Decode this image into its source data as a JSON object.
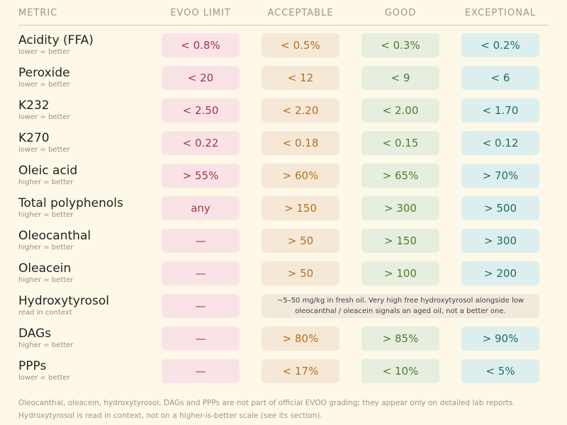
{
  "header": {
    "metric": "METRIC",
    "limit": "EVOO LIMIT",
    "acceptable": "ACCEPTABLE",
    "good": "GOOD",
    "exceptional": "EXCEPTIONAL"
  },
  "rows": [
    {
      "name": "Acidity (FFA)",
      "hint": "lower = better",
      "limit": "< 0.8%",
      "acceptable": "< 0.5%",
      "good": "< 0.3%",
      "exceptional": "< 0.2%"
    },
    {
      "name": "Peroxide",
      "hint": "lower = better",
      "limit": "< 20",
      "acceptable": "< 12",
      "good": "< 9",
      "exceptional": "< 6"
    },
    {
      "name": "K232",
      "hint": "lower = better",
      "limit": "< 2.50",
      "acceptable": "< 2.20",
      "good": "< 2.00",
      "exceptional": "< 1.70"
    },
    {
      "name": "K270",
      "hint": "lower = better",
      "limit": "< 0.22",
      "acceptable": "< 0.18",
      "good": "< 0.15",
      "exceptional": "< 0.12"
    },
    {
      "name": "Oleic acid",
      "hint": "higher = better",
      "limit": "> 55%",
      "acceptable": "> 60%",
      "good": "> 65%",
      "exceptional": "> 70%"
    },
    {
      "name": "Total polyphenols",
      "hint": "higher = better",
      "limit": "any",
      "acceptable": "> 150",
      "good": "> 300",
      "exceptional": "> 500"
    },
    {
      "name": "Oleocanthal",
      "hint": "higher = better",
      "limit": "—",
      "acceptable": "> 50",
      "good": "> 150",
      "exceptional": "> 300"
    },
    {
      "name": "Oleacein",
      "hint": "higher = better",
      "limit": "—",
      "acceptable": "> 50",
      "good": "> 100",
      "exceptional": "> 200"
    },
    {
      "name": "Hydroxytyrosol",
      "hint": "read in context",
      "limit": "—",
      "note": "~5–50 mg/kg in fresh oil. Very high free hydroxytyrosol alongside low oleocanthal / oleacein signals an aged oil, not a better one."
    },
    {
      "name": "DAGs",
      "hint": "higher = better",
      "limit": "—",
      "acceptable": "> 80%",
      "good": "> 85%",
      "exceptional": "> 90%"
    },
    {
      "name": "PPPs",
      "hint": "lower = better",
      "limit": "—",
      "acceptable": "< 17%",
      "good": "< 10%",
      "exceptional": "< 5%"
    }
  ],
  "footnote": {
    "line1": "Oleocanthal, oleacein, hydroxytyrosol, DAGs and PPPs are not part of official EVOO grading; they appear only on detailed lab reports.",
    "line2": "Hydroxytyrosol is read in context, not on a higher-is-better scale (see its section)."
  }
}
